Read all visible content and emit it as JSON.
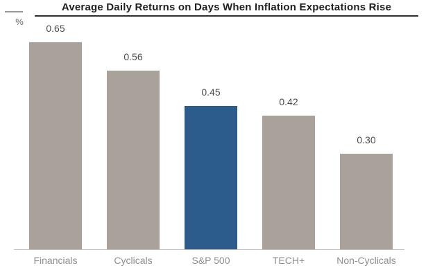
{
  "chart_data": {
    "type": "bar",
    "title": "Average Daily Returns on Days When Inflation Expectations Rise",
    "unit_label": "%",
    "categories": [
      "Financials",
      "Cyclicals",
      "S&P 500",
      "TECH+",
      "Non-Cyclicals"
    ],
    "values": [
      0.65,
      0.56,
      0.45,
      0.42,
      0.3
    ],
    "value_labels": [
      "0.65",
      "0.56",
      "0.45",
      "0.42",
      "0.30"
    ],
    "highlight_index": 2,
    "highlight_category": "S&P 500",
    "bar_color": "#a9a29b",
    "highlight_color": "#2b5c8c",
    "value_label_color": "#4c4c4c",
    "category_label_color": "#8e8e8e",
    "axis_line_color": "#bfbfbf",
    "title_color": "#1f1f1f",
    "ylabel": "%",
    "xlabel": "",
    "ylim": [
      0,
      0.7
    ],
    "grid": false,
    "legend": false
  }
}
